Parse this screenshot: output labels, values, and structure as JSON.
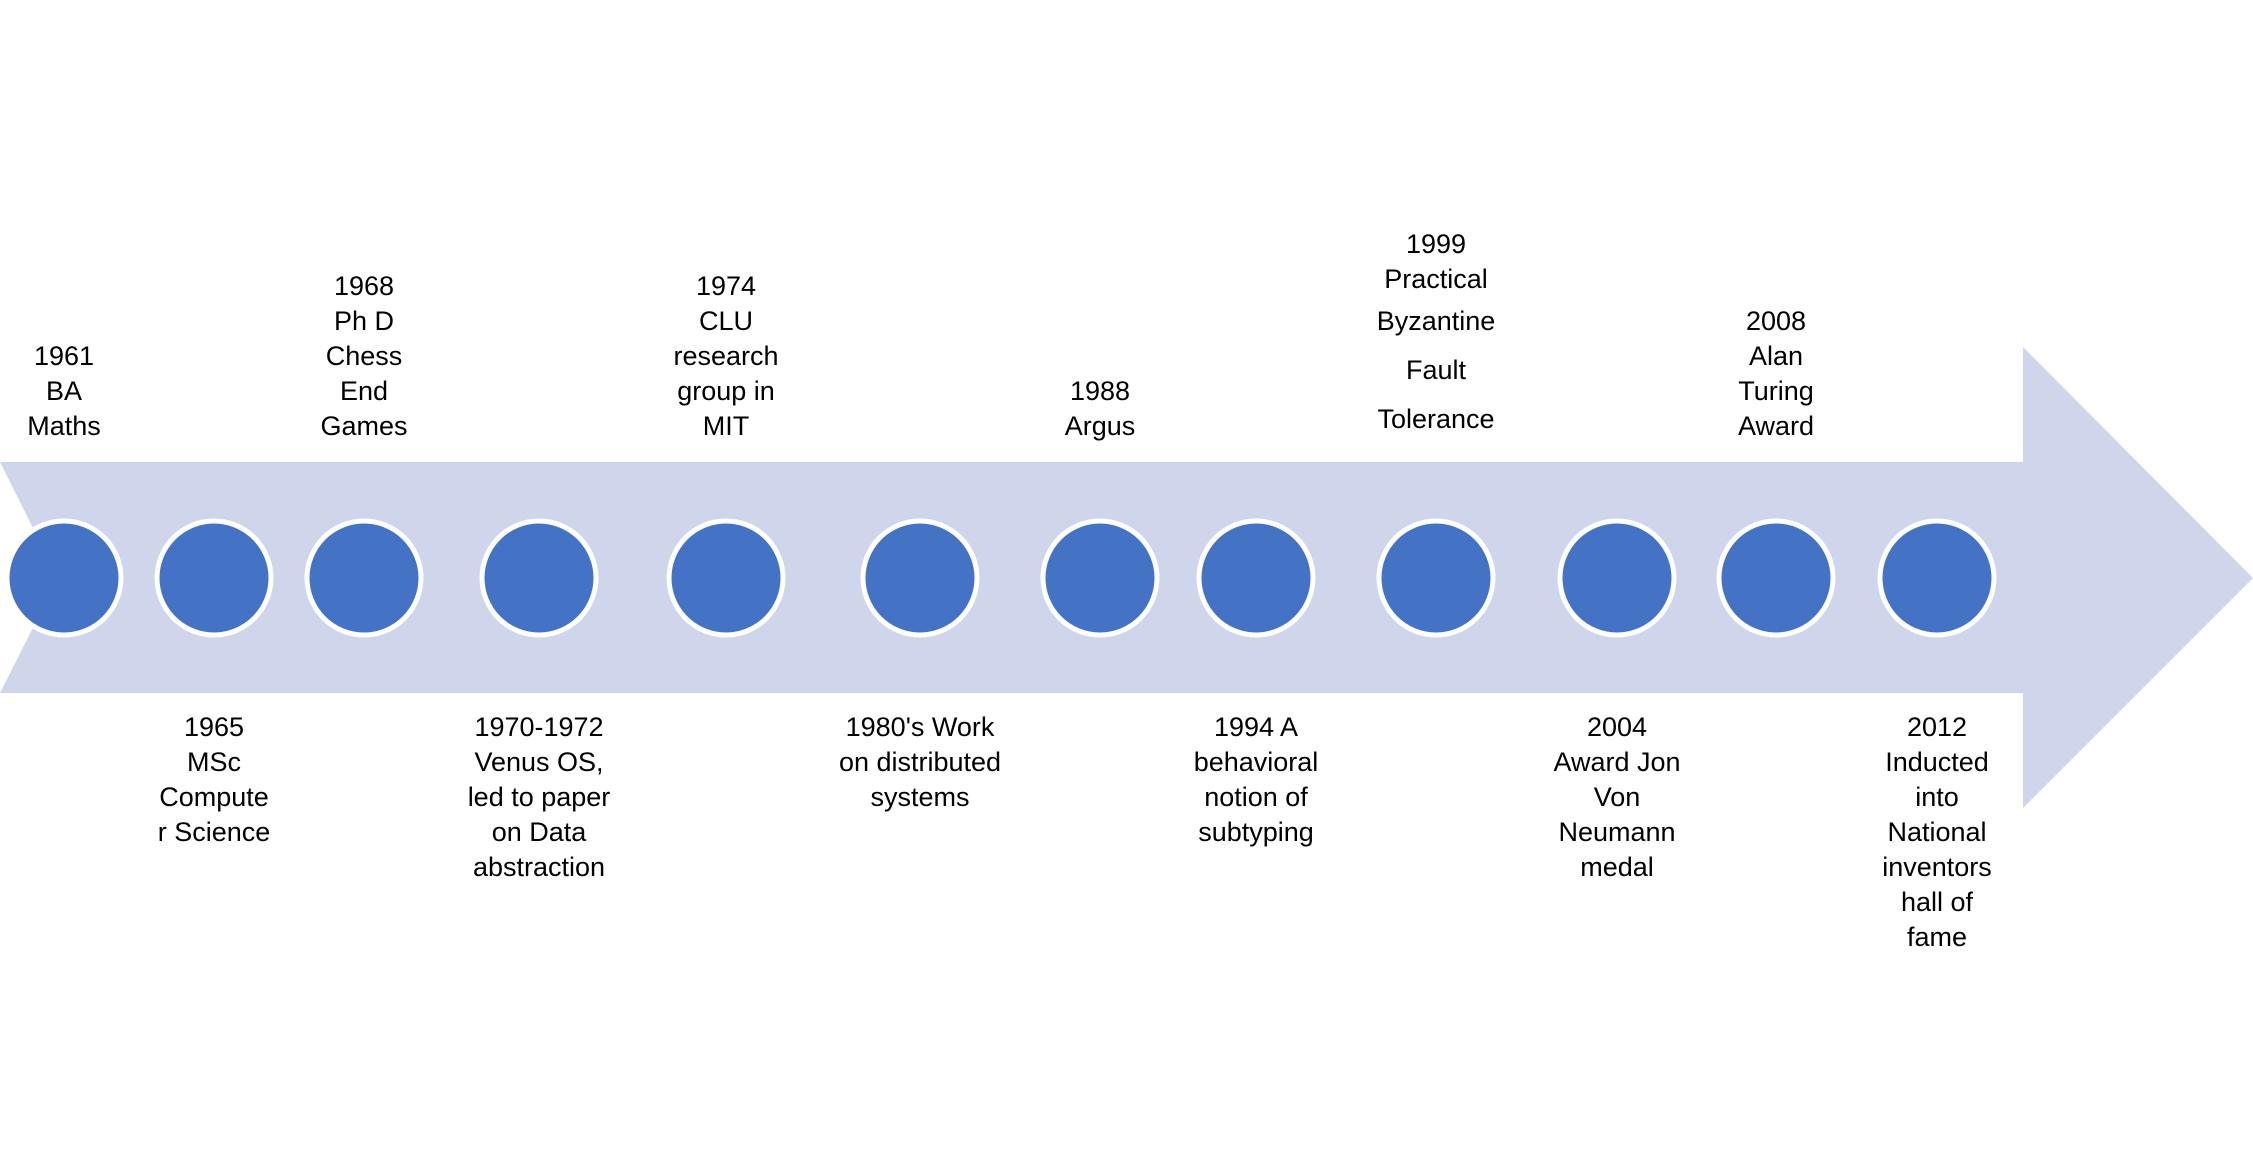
{
  "colors": {
    "arrow": "#CFD5EA",
    "marker_fill": "#4472C4",
    "marker_stroke": "#FFFFFF",
    "text": "#000000"
  },
  "events": [
    {
      "id": "e1961",
      "position": "above",
      "lines": [
        "1961",
        "BA",
        "Maths"
      ]
    },
    {
      "id": "e1965",
      "position": "below",
      "lines": [
        "1965",
        "MSc",
        "Compute",
        "r Science"
      ]
    },
    {
      "id": "e1968",
      "position": "above",
      "lines": [
        "1968",
        "Ph D",
        "Chess",
        "End",
        "Games"
      ]
    },
    {
      "id": "e1970",
      "position": "below",
      "lines": [
        "1970-1972",
        "Venus OS,",
        "led to paper",
        "on Data",
        "abstraction"
      ]
    },
    {
      "id": "e1974",
      "position": "above",
      "lines": [
        "1974",
        "CLU",
        "research",
        "group in",
        "MIT"
      ]
    },
    {
      "id": "e1980",
      "position": "below",
      "lines": [
        "1980's Work",
        "on distributed",
        "systems"
      ]
    },
    {
      "id": "e1988",
      "position": "above",
      "lines": [
        "1988",
        "Argus"
      ]
    },
    {
      "id": "e1994",
      "position": "below",
      "lines": [
        "1994 A",
        "behavioral",
        "notion of",
        "subtyping"
      ]
    },
    {
      "id": "e1999",
      "position": "above",
      "lines": [
        "1999",
        "Practical",
        "Byzantine",
        "Fault",
        "Tolerance"
      ]
    },
    {
      "id": "e2004",
      "position": "below",
      "lines": [
        "2004",
        "Award Jon",
        "Von",
        "Neumann",
        "medal"
      ]
    },
    {
      "id": "e2008",
      "position": "above",
      "lines": [
        "2008",
        "Alan",
        "Turing",
        "Award"
      ]
    },
    {
      "id": "e2012",
      "position": "below",
      "lines": [
        "2012",
        "Inducted",
        "into",
        "National",
        "inventors",
        "hall of",
        "fame"
      ]
    }
  ]
}
